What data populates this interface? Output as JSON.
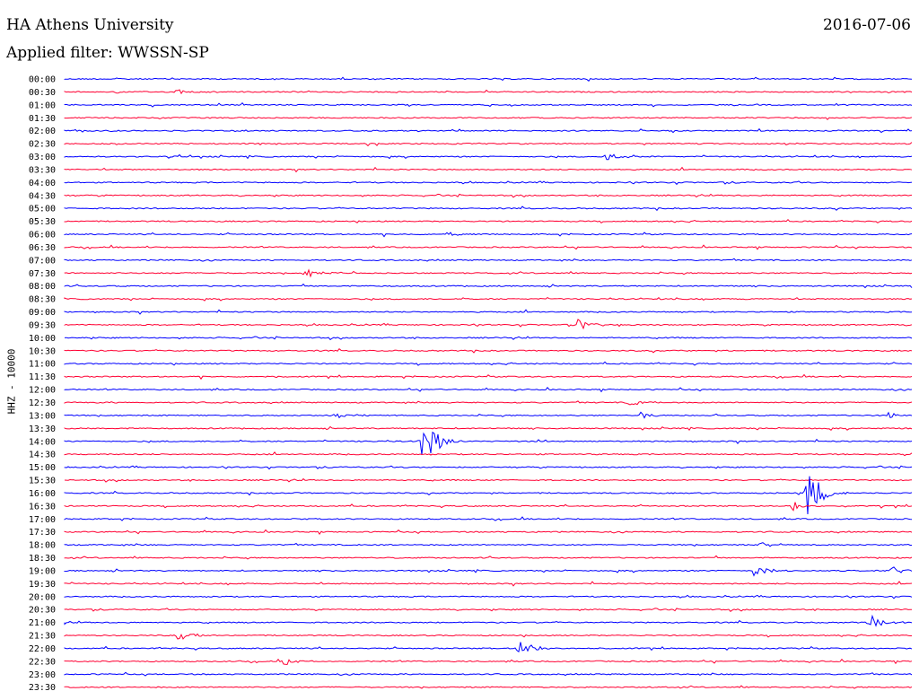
{
  "header": {
    "title": "HA Athens University",
    "date": "2016-07-06",
    "filter": "Applied filter: WWSSN-SP"
  },
  "chart_data": {
    "type": "line",
    "title": "HA Athens University",
    "subtitle": "Applied filter: WWSSN-SP",
    "date": "2016-07-06",
    "ylabel": "HHZ - 10000",
    "xlabel": "",
    "colors": {
      "blue": "#0000ff",
      "red": "#ff0033"
    },
    "row_labels": [
      "00:00",
      "00:30",
      "01:00",
      "01:30",
      "02:00",
      "02:30",
      "03:00",
      "03:30",
      "04:00",
      "04:30",
      "05:00",
      "05:30",
      "06:00",
      "06:30",
      "07:00",
      "07:30",
      "08:00",
      "08:30",
      "09:00",
      "09:30",
      "10:00",
      "10:30",
      "11:00",
      "11:30",
      "12:00",
      "12:30",
      "13:00",
      "13:30",
      "14:00",
      "14:30",
      "15:00",
      "15:30",
      "16:00",
      "16:30",
      "17:00",
      "17:30",
      "18:00",
      "18:30",
      "19:00",
      "19:30",
      "20:00",
      "20:30",
      "21:00",
      "21:30",
      "22:00",
      "22:30",
      "23:00",
      "23:30"
    ],
    "events": [
      {
        "row": "00:30",
        "minute": 4.0,
        "amp": 0.25
      },
      {
        "row": "03:00",
        "minute": 19.2,
        "amp": 0.4
      },
      {
        "row": "06:00",
        "minute": 13.5,
        "amp": 0.25
      },
      {
        "row": "07:30",
        "minute": 8.5,
        "amp": 0.5
      },
      {
        "row": "09:30",
        "minute": 18.2,
        "amp": 0.5
      },
      {
        "row": "12:30",
        "minute": 20.0,
        "amp": 0.25
      },
      {
        "row": "13:00",
        "minute": 9.6,
        "amp": 0.3
      },
      {
        "row": "13:00",
        "minute": 20.4,
        "amp": 0.3
      },
      {
        "row": "13:00",
        "minute": 29.2,
        "amp": 0.3
      },
      {
        "row": "14:00",
        "minute": 12.7,
        "amp": 2.4
      },
      {
        "row": "16:00",
        "minute": 26.3,
        "amp": 2.4
      },
      {
        "row": "16:30",
        "minute": 25.8,
        "amp": 0.4
      },
      {
        "row": "18:00",
        "minute": 24.7,
        "amp": 0.3
      },
      {
        "row": "19:00",
        "minute": 24.4,
        "amp": 0.5
      },
      {
        "row": "19:00",
        "minute": 29.3,
        "amp": 0.35
      },
      {
        "row": "21:00",
        "minute": 28.5,
        "amp": 0.6
      },
      {
        "row": "21:30",
        "minute": 4.0,
        "amp": 0.6
      },
      {
        "row": "22:00",
        "minute": 16.1,
        "amp": 0.8
      },
      {
        "row": "22:30",
        "minute": 7.8,
        "amp": 0.4
      }
    ]
  }
}
